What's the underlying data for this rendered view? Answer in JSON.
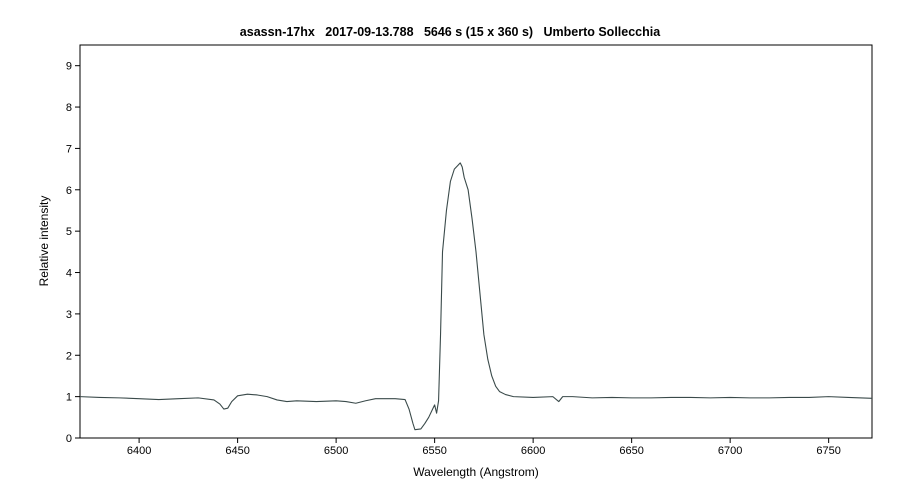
{
  "chart_data": {
    "type": "line",
    "title": "asassn-17hx   2017-09-13.788   5646 s (15 x 360 s)   Umberto Sollecchia",
    "xlabel": "Wavelength (Angstrom)",
    "ylabel": "Relative intensity",
    "xlim": [
      6370,
      6772
    ],
    "ylim": [
      0,
      9.5
    ],
    "x_ticks": [
      6400,
      6450,
      6500,
      6550,
      6600,
      6650,
      6700,
      6750
    ],
    "y_ticks": [
      0,
      1,
      2,
      3,
      4,
      5,
      6,
      7,
      8,
      9
    ],
    "grid": false,
    "line_color": "#3a4a4a",
    "series": [
      {
        "points": [
          [
            6370,
            1.0
          ],
          [
            6380,
            0.98
          ],
          [
            6390,
            0.97
          ],
          [
            6400,
            0.95
          ],
          [
            6410,
            0.93
          ],
          [
            6420,
            0.95
          ],
          [
            6430,
            0.97
          ],
          [
            6438,
            0.92
          ],
          [
            6441,
            0.82
          ],
          [
            6443,
            0.7
          ],
          [
            6445,
            0.72
          ],
          [
            6447,
            0.88
          ],
          [
            6450,
            1.02
          ],
          [
            6455,
            1.06
          ],
          [
            6460,
            1.04
          ],
          [
            6465,
            1.0
          ],
          [
            6470,
            0.92
          ],
          [
            6475,
            0.88
          ],
          [
            6480,
            0.9
          ],
          [
            6490,
            0.88
          ],
          [
            6500,
            0.9
          ],
          [
            6505,
            0.88
          ],
          [
            6510,
            0.84
          ],
          [
            6515,
            0.9
          ],
          [
            6520,
            0.95
          ],
          [
            6530,
            0.95
          ],
          [
            6535,
            0.93
          ],
          [
            6537,
            0.7
          ],
          [
            6539,
            0.35
          ],
          [
            6540,
            0.2
          ],
          [
            6543,
            0.22
          ],
          [
            6545,
            0.35
          ],
          [
            6547,
            0.5
          ],
          [
            6549,
            0.7
          ],
          [
            6550,
            0.8
          ],
          [
            6551,
            0.6
          ],
          [
            6552,
            0.9
          ],
          [
            6553,
            2.5
          ],
          [
            6554,
            4.5
          ],
          [
            6556,
            5.5
          ],
          [
            6558,
            6.2
          ],
          [
            6560,
            6.5
          ],
          [
            6562,
            6.6
          ],
          [
            6563,
            6.65
          ],
          [
            6564,
            6.55
          ],
          [
            6565,
            6.3
          ],
          [
            6567,
            6.0
          ],
          [
            6569,
            5.3
          ],
          [
            6571,
            4.5
          ],
          [
            6573,
            3.5
          ],
          [
            6575,
            2.5
          ],
          [
            6577,
            1.9
          ],
          [
            6579,
            1.5
          ],
          [
            6581,
            1.25
          ],
          [
            6583,
            1.12
          ],
          [
            6586,
            1.05
          ],
          [
            6590,
            1.0
          ],
          [
            6600,
            0.98
          ],
          [
            6610,
            1.0
          ],
          [
            6613,
            0.88
          ],
          [
            6615,
            1.0
          ],
          [
            6620,
            1.0
          ],
          [
            6630,
            0.97
          ],
          [
            6640,
            0.98
          ],
          [
            6650,
            0.97
          ],
          [
            6660,
            0.97
          ],
          [
            6670,
            0.98
          ],
          [
            6680,
            0.98
          ],
          [
            6690,
            0.97
          ],
          [
            6700,
            0.98
          ],
          [
            6710,
            0.97
          ],
          [
            6720,
            0.97
          ],
          [
            6730,
            0.98
          ],
          [
            6740,
            0.98
          ],
          [
            6750,
            1.0
          ],
          [
            6760,
            0.98
          ],
          [
            6772,
            0.96
          ]
        ]
      }
    ]
  }
}
